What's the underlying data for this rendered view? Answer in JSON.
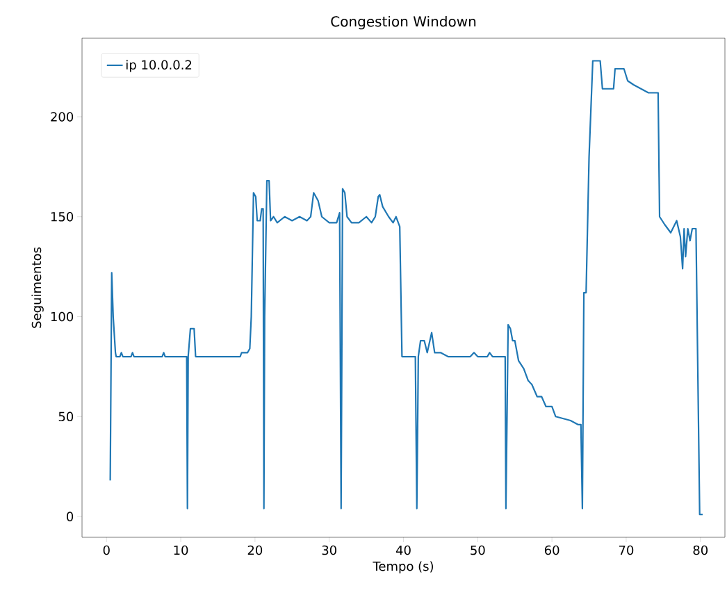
{
  "chart_data": {
    "type": "line",
    "title": "Congestion Windown",
    "xlabel": "Tempo (s)",
    "ylabel": "Seguimentos",
    "xlim": [
      -3.3,
      83.3
    ],
    "ylim": [
      -10.4,
      239.3
    ],
    "xticks": [
      0,
      10,
      20,
      30,
      40,
      50,
      60,
      70,
      80
    ],
    "yticks": [
      0,
      50,
      100,
      150,
      200
    ],
    "legend": "top left",
    "series": [
      {
        "name": "ip 10.0.0.2",
        "color": "#1f77b4",
        "x": [
          0.5,
          0.7,
          0.9,
          1.2,
          1.3,
          1.8,
          2.0,
          2.2,
          3.3,
          3.5,
          3.7,
          7.5,
          7.7,
          7.9,
          10.8,
          10.9,
          11.0,
          11.3,
          11.8,
          12.0,
          18.0,
          18.2,
          19.0,
          19.3,
          19.5,
          19.8,
          20.1,
          20.3,
          20.7,
          20.9,
          21.1,
          21.2,
          21.3,
          21.6,
          21.9,
          22.1,
          22.5,
          23.0,
          24.0,
          25.0,
          26.0,
          27.0,
          27.5,
          27.9,
          28.5,
          29.0,
          30.0,
          31.0,
          31.4,
          31.6,
          31.8,
          32.1,
          32.4,
          33.0,
          34.0,
          35.0,
          35.7,
          36.2,
          36.6,
          36.8,
          37.2,
          38.0,
          38.6,
          39.0,
          39.5,
          39.8,
          41.6,
          41.8,
          42.0,
          42.3,
          42.8,
          43.2,
          43.8,
          44.2,
          45.0,
          46.0,
          49.0,
          49.5,
          50.0,
          51.3,
          51.6,
          52.0,
          53.7,
          53.8,
          54.1,
          54.4,
          54.7,
          55.0,
          55.5,
          56.2,
          56.8,
          57.3,
          58.0,
          58.6,
          59.2,
          60.0,
          60.5,
          61.5,
          62.5,
          63.5,
          63.9,
          64.1,
          64.3,
          64.6,
          65.0,
          65.5,
          66.5,
          66.8,
          68.3,
          68.5,
          69.7,
          70.2,
          71.0,
          72.0,
          73.0,
          74.3,
          74.5,
          75.2,
          76.0,
          76.8,
          77.3,
          77.6,
          77.8,
          78.0,
          78.3,
          78.6,
          78.9,
          79.4,
          79.9,
          80.3
        ],
        "values": [
          18,
          122,
          100,
          82,
          80,
          80,
          82,
          80,
          80,
          82,
          80,
          80,
          82,
          80,
          80,
          4,
          80,
          94,
          94,
          80,
          80,
          82,
          82,
          84,
          100,
          162,
          160,
          148,
          148,
          154,
          154,
          4,
          100,
          168,
          168,
          148,
          150,
          147,
          150,
          148,
          150,
          148,
          150,
          162,
          158,
          150,
          147,
          147,
          152,
          4,
          164,
          162,
          150,
          147,
          147,
          150,
          147,
          150,
          160,
          161,
          155,
          150,
          147,
          150,
          145,
          80,
          80,
          4,
          80,
          88,
          88,
          82,
          92,
          82,
          82,
          80,
          80,
          82,
          80,
          80,
          82,
          80,
          80,
          4,
          96,
          94,
          88,
          88,
          78,
          74,
          68,
          66,
          60,
          60,
          55,
          55,
          50,
          49,
          48,
          46,
          46,
          4,
          112,
          112,
          180,
          228,
          228,
          214,
          214,
          224,
          224,
          218,
          216,
          214,
          212,
          212,
          150,
          146,
          142,
          148,
          140,
          124,
          144,
          130,
          144,
          138,
          144,
          144,
          1,
          1
        ]
      }
    ]
  }
}
